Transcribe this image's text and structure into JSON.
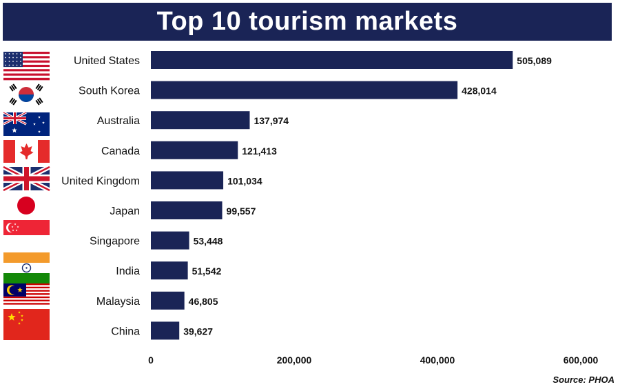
{
  "title": "Top 10 tourism markets",
  "source": "Source: PHOA",
  "colors": {
    "bar": "#1a2456",
    "banner": "#1a2456"
  },
  "chart_data": {
    "type": "bar",
    "orientation": "horizontal",
    "title": "Top 10 tourism markets",
    "categories": [
      "United States",
      "South Korea",
      "Australia",
      "Canada",
      "United Kingdom",
      "Japan",
      "Singapore",
      "India",
      "Malaysia",
      "China"
    ],
    "values": [
      505089,
      428014,
      137974,
      121413,
      101034,
      99557,
      53448,
      51542,
      46805,
      39627
    ],
    "value_labels": [
      "505,089",
      "428,014",
      "137,974",
      "121,413",
      "101,034",
      "99,557",
      "53,448",
      "51,542",
      "46,805",
      "39,627"
    ],
    "flags": [
      "us-flag-icon",
      "south-korea-flag-icon",
      "australia-flag-icon",
      "canada-flag-icon",
      "uk-flag-icon",
      "japan-flag-icon",
      "singapore-flag-icon",
      "india-flag-icon",
      "malaysia-flag-icon",
      "china-flag-icon"
    ],
    "xlim": [
      0,
      600000
    ],
    "xticks": [
      0,
      200000,
      400000,
      600000
    ],
    "xtick_labels": [
      "0",
      "200,000",
      "400,000",
      "600,000"
    ],
    "grid": false
  }
}
